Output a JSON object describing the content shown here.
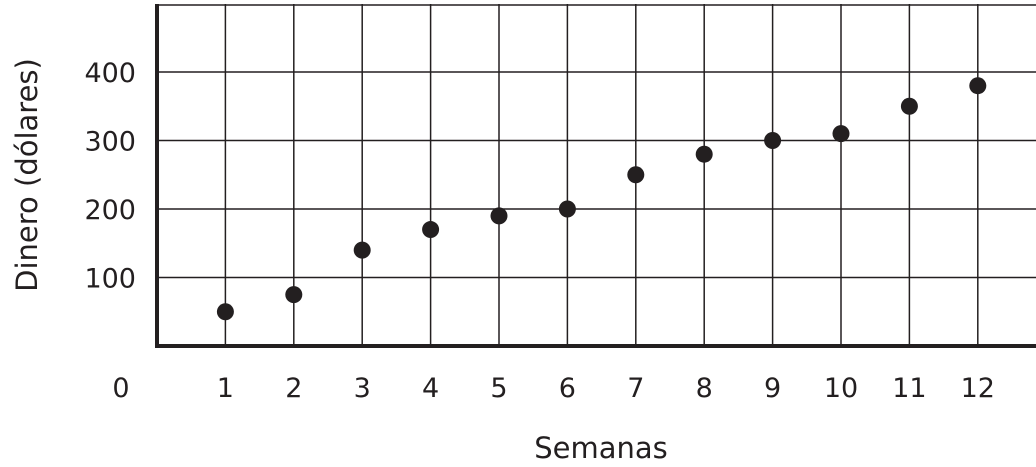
{
  "chart_data": {
    "type": "scatter",
    "title": "",
    "xlabel": "Semanas",
    "ylabel": "Dinero (dólares)",
    "x": [
      1,
      2,
      3,
      4,
      5,
      6,
      7,
      8,
      9,
      10,
      11,
      12
    ],
    "y": [
      50,
      75,
      140,
      170,
      190,
      200,
      250,
      280,
      300,
      310,
      350,
      380
    ],
    "xlim": [
      0,
      12.6
    ],
    "ylim": [
      0,
      490
    ],
    "x_ticks": [
      0,
      1,
      2,
      3,
      4,
      5,
      6,
      7,
      8,
      9,
      10,
      11,
      12
    ],
    "y_ticks": [
      100,
      200,
      300,
      400
    ],
    "grid": true,
    "marker_color": "#231f20"
  }
}
